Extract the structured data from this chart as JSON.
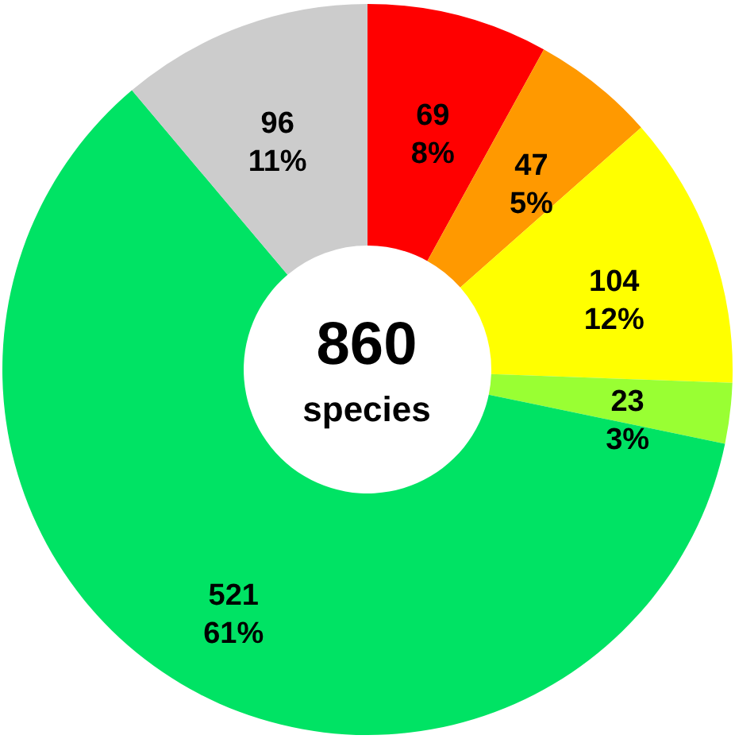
{
  "chart_data": {
    "type": "donut",
    "categories": [
      null,
      null,
      null,
      null,
      null,
      null
    ],
    "values": [
      69,
      47,
      104,
      23,
      521,
      96
    ],
    "colors": [
      "#ff0000",
      "#ff9900",
      "#ffff00",
      "#99ff33",
      "#00e364",
      "#cccccc"
    ],
    "value_labels": [
      "69\n8%",
      "47\n5%",
      "104\n12%",
      "23\n3%",
      "521\n61%",
      "96\n11%"
    ],
    "annotations": [
      "860",
      "species"
    ]
  }
}
